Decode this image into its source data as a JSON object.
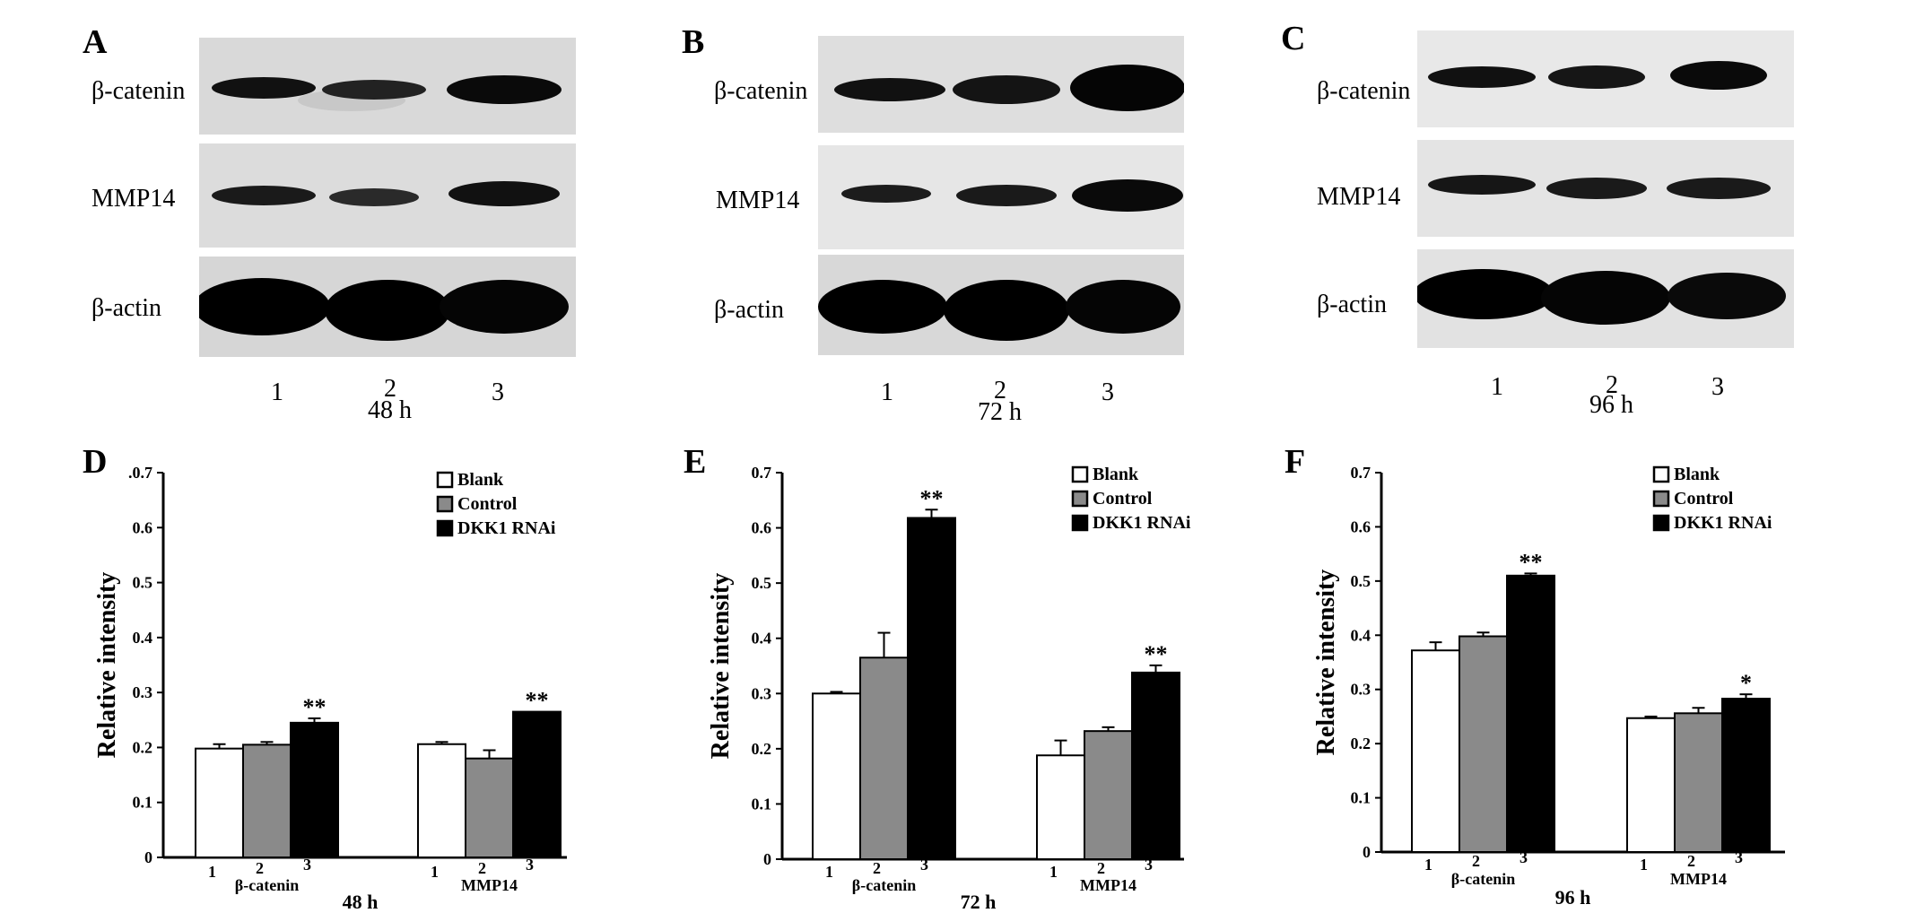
{
  "blots": [
    {
      "letter": "A",
      "rows": [
        "β-catenin",
        "MMP14",
        "β-actin"
      ],
      "lanes": [
        "1",
        "2",
        "3"
      ],
      "time": "48 h"
    },
    {
      "letter": "B",
      "rows": [
        "β-catenin",
        "MMP14",
        "β-actin"
      ],
      "lanes": [
        "1",
        "2",
        "3"
      ],
      "time": "72 h"
    },
    {
      "letter": "C",
      "rows": [
        "β-catenin",
        "MMP14",
        "β-actin"
      ],
      "lanes": [
        "1",
        "2",
        "3"
      ],
      "time": "96 h"
    }
  ],
  "chart_data": [
    {
      "type": "bar",
      "panel": "D",
      "ylabel": "Relative intensity",
      "xlabel": "48 h",
      "ylim": [
        0,
        0.7
      ],
      "yticks": [
        "0",
        "0.1",
        "0.2",
        "0.3",
        "0.4",
        "0.5",
        "0.6",
        ".0.7"
      ],
      "groups": [
        "β-catenin",
        "MMP14"
      ],
      "lanes": [
        "1",
        "2",
        "3"
      ],
      "legend_position": "top-right",
      "legend": [
        "Blank",
        "Control",
        "DKK1 RNAi"
      ],
      "series": [
        {
          "name": "Blank",
          "color": "#ffffff",
          "values": [
            0.198,
            0.206
          ],
          "errors": [
            0.008,
            0.004
          ]
        },
        {
          "name": "Control",
          "color": "#8a8a8a",
          "values": [
            0.205,
            0.18
          ],
          "errors": [
            0.005,
            0.015
          ]
        },
        {
          "name": "DKK1 RNAi",
          "color": "#000000",
          "values": [
            0.245,
            0.265
          ],
          "errors": [
            0.008,
            0.0
          ]
        }
      ],
      "annotations": [
        {
          "group": 0,
          "series": 2,
          "text": "**"
        },
        {
          "group": 1,
          "series": 2,
          "text": "**"
        }
      ]
    },
    {
      "type": "bar",
      "panel": "E",
      "ylabel": "Relative intensity",
      "xlabel": "72 h",
      "ylim": [
        0,
        0.7
      ],
      "yticks": [
        "0",
        "0.1",
        "0.2",
        "0.3",
        "0.4",
        "0.5",
        "0.6",
        "0.7"
      ],
      "groups": [
        "β-catenin",
        "MMP14"
      ],
      "lanes": [
        "1",
        "2",
        "3"
      ],
      "legend_position": "top-right",
      "legend": [
        "Blank",
        "Control",
        "DKK1 RNAi"
      ],
      "series": [
        {
          "name": "Blank",
          "color": "#ffffff",
          "values": [
            0.3,
            0.188
          ],
          "errors": [
            0.003,
            0.027
          ]
        },
        {
          "name": "Control",
          "color": "#8a8a8a",
          "values": [
            0.365,
            0.232
          ],
          "errors": [
            0.045,
            0.007
          ]
        },
        {
          "name": "DKK1 RNAi",
          "color": "#000000",
          "values": [
            0.618,
            0.338
          ],
          "errors": [
            0.015,
            0.013
          ]
        }
      ],
      "annotations": [
        {
          "group": 0,
          "series": 2,
          "text": "**"
        },
        {
          "group": 1,
          "series": 2,
          "text": "**"
        }
      ]
    },
    {
      "type": "bar",
      "panel": "F",
      "ylabel": "Relative intensity",
      "xlabel": "96 h",
      "ylim": [
        0,
        0.7
      ],
      "yticks": [
        "0",
        "0.1",
        "0.2",
        "0.3",
        "0.4",
        "0.5",
        "0.6",
        "0.7"
      ],
      "groups": [
        "β-catenin",
        "MMP14"
      ],
      "lanes": [
        "1",
        "2",
        "3"
      ],
      "legend_position": "top-right",
      "legend": [
        "Blank",
        "Control",
        "DKK1 RNAi"
      ],
      "series": [
        {
          "name": "Blank",
          "color": "#ffffff",
          "values": [
            0.372,
            0.247
          ],
          "errors": [
            0.015,
            0.003
          ]
        },
        {
          "name": "Control",
          "color": "#8a8a8a",
          "values": [
            0.398,
            0.256
          ],
          "errors": [
            0.007,
            0.01
          ]
        },
        {
          "name": "DKK1 RNAi",
          "color": "#000000",
          "values": [
            0.51,
            0.283
          ],
          "errors": [
            0.004,
            0.008
          ]
        }
      ],
      "annotations": [
        {
          "group": 0,
          "series": 2,
          "text": "**"
        },
        {
          "group": 1,
          "series": 2,
          "text": "*"
        }
      ]
    }
  ]
}
